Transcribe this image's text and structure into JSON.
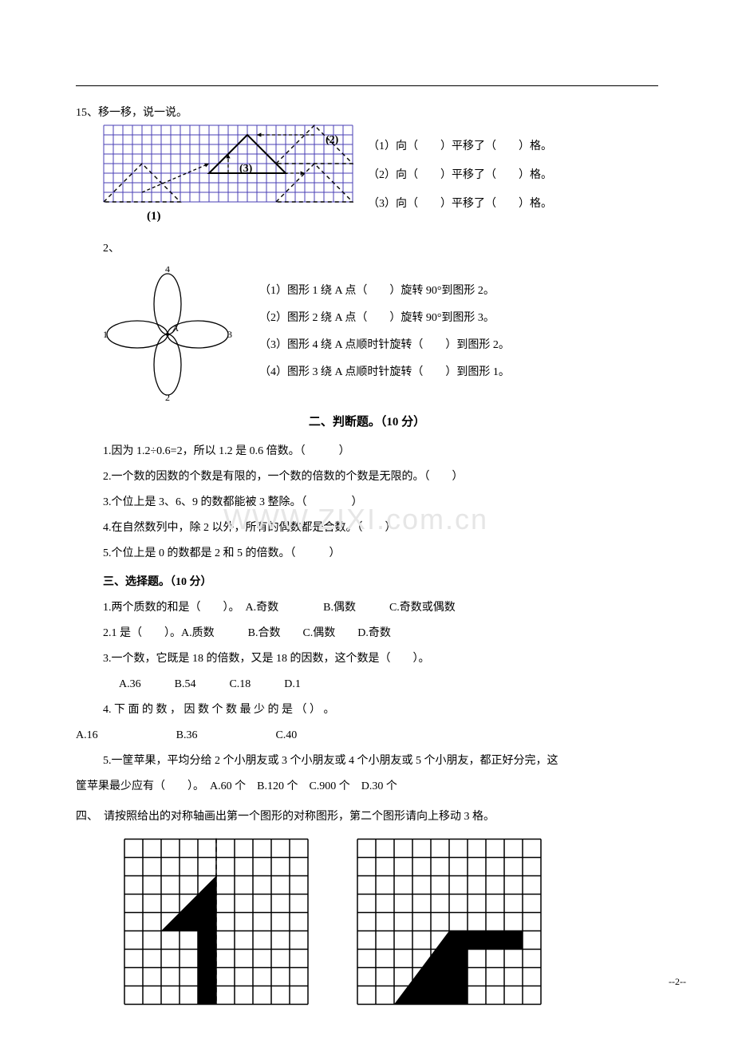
{
  "q15": {
    "heading": "15、移一移，说一说。",
    "lines": [
      "（1）向（　　）平移了（　　）格。",
      "（2）向（　　）平移了（　　）格。",
      "（3）向（　　）平移了（　　）格。"
    ],
    "grid": {
      "cols": 26,
      "rows": 8,
      "cell": 12,
      "stroke": "#4a3fb5",
      "labels": {
        "one": "(1)",
        "two": "(2)",
        "three": "(3)"
      }
    }
  },
  "q2": {
    "heading": "2、",
    "petal_labels": [
      "1",
      "2",
      "3",
      "4"
    ],
    "center_label": "A",
    "lines": [
      "（1）图形 1 绕 A 点（　　）旋转 90°到图形 2。",
      "（2）图形 2 绕 A 点（　　）旋转 90°到图形 3。",
      "（3）图形 4 绕 A 点顺时针旋转（　　）到图形 2。",
      "（4）图形 3 绕 A 点顺时针旋转（　　）到图形 1。"
    ]
  },
  "sec2": {
    "title": "二、判断题。（10 分）",
    "items": [
      "1.因为 1.2÷0.6=2，所以 1.2 是 0.6 倍数。（　　　）",
      "2.一个数的因数的个数是有限的，一个数的倍数的个数是无限的。（　　）",
      "3.个位上是 3、6、9 的数都能被 3 整除。（　　　　）",
      "4.在自然数列中，除 2 以外，所有的偶数都是合数。（　　）",
      "5.个位上是 0 的数都是 2 和 5 的倍数。（　　　）"
    ]
  },
  "sec3": {
    "title": "三、选择题。（10 分）",
    "items": [
      "1.两个质数的和是（　　）。　A.奇数　　　　B.偶数　　　C.奇数或偶数",
      "2.1 是（　　）。A.质数　　　B.合数　　C.偶数　　D.奇数",
      "3.一个数，它既是 18 的倍数，又是 18 的因数，这个数是（　　）。",
      "4. 下 面 的 数 ， 因 数 个 数 最 少 的 是 （ ） 。",
      "5.一筐苹果，平均分给 2 个小朋友或 3 个小朋友或 4 个小朋友或 5 个小朋友，都正好分完，这"
    ],
    "sub3": "A.36　　　B.54　　　C.18　　　D.1",
    "sub4": "A.16　　　　　　　B.36　　　　　　　C.40",
    "sub5": "筐苹果最少应有（　　）。　A.60 个　B.120 个　C.900 个　D.30 个"
  },
  "sec4": {
    "title": "四、　请按照给出的对称轴画出第一个图形的对称图形，第二个图形请向上移动 3 格。",
    "grid": {
      "cols": 10,
      "rows": 9,
      "cell": 23,
      "stroke": "#000"
    }
  },
  "watermark": "WWW.ZIXI.com.cn",
  "page": "--2--"
}
